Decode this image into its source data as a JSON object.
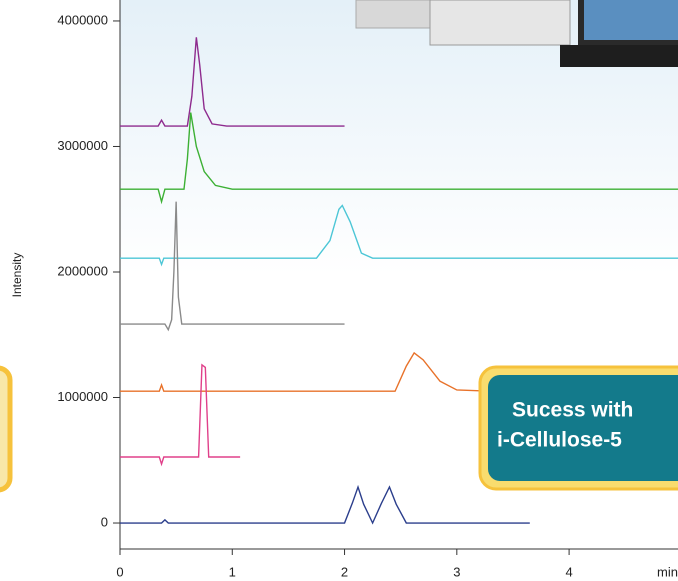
{
  "chart_data": {
    "type": "line",
    "x_label": "min",
    "y_label": "Intensity",
    "xlim": [
      0,
      4.97
    ],
    "xticks": [
      0,
      1,
      2,
      3,
      4
    ],
    "ylim": [
      -207000,
      4167000
    ],
    "yticks": [
      0,
      1000000,
      2000000,
      3000000,
      4000000
    ],
    "annotation": [
      "Sucess with",
      "i-Cellulose-5"
    ],
    "series": [
      {
        "color": "#8e2b8e",
        "x": [
          0,
          0.34,
          0.37,
          0.4,
          0.6,
          0.64,
          0.68,
          0.71,
          0.75,
          0.82,
          0.95,
          2.0
        ],
        "values": [
          3163000,
          3163000,
          3210000,
          3163000,
          3163000,
          3400000,
          3870000,
          3650000,
          3300000,
          3180000,
          3163000,
          3163000
        ]
      },
      {
        "color": "#3cb034",
        "x": [
          0,
          0.34,
          0.37,
          0.4,
          0.57,
          0.6,
          0.63,
          0.68,
          0.75,
          0.85,
          1.0,
          4.97
        ],
        "values": [
          2660000,
          2660000,
          2560000,
          2660000,
          2660000,
          2900000,
          3270000,
          3000000,
          2800000,
          2690000,
          2660000,
          2660000
        ]
      },
      {
        "color": "#4cc6d6",
        "x": [
          0,
          0.35,
          0.37,
          0.39,
          1.75,
          1.87,
          1.95,
          1.98,
          2.05,
          2.15,
          2.25,
          4.97
        ],
        "values": [
          2110000,
          2110000,
          2060000,
          2110000,
          2110000,
          2250000,
          2500000,
          2530000,
          2400000,
          2150000,
          2110000,
          2110000
        ]
      },
      {
        "color": "#8a8a8a",
        "x": [
          0,
          0.4,
          0.43,
          0.46,
          0.48,
          0.5,
          0.52,
          0.55,
          2.0
        ],
        "values": [
          1585000,
          1585000,
          1540000,
          1620000,
          2000000,
          2560000,
          1800000,
          1585000,
          1585000
        ]
      },
      {
        "color": "#e8722a",
        "x": [
          0,
          0.35,
          0.37,
          0.39,
          2.45,
          2.55,
          2.62,
          2.7,
          2.85,
          3.0,
          3.3
        ],
        "values": [
          1050000,
          1050000,
          1100000,
          1050000,
          1050000,
          1250000,
          1355000,
          1300000,
          1130000,
          1060000,
          1050000
        ]
      },
      {
        "color": "#e0408a",
        "x": [
          0,
          0.35,
          0.37,
          0.39,
          0.7,
          0.73,
          0.76,
          0.79,
          1.07
        ],
        "values": [
          526000,
          526000,
          470000,
          526000,
          526000,
          1260000,
          1240000,
          526000,
          526000
        ]
      },
      {
        "color": "#2b3e8c",
        "x": [
          0,
          0.37,
          0.4,
          0.43,
          2.0,
          2.07,
          2.12,
          2.17,
          2.25,
          2.33,
          2.4,
          2.46,
          2.55,
          3.65
        ],
        "values": [
          0,
          0,
          25000,
          0,
          0,
          160000,
          287000,
          150000,
          0,
          160000,
          287000,
          150000,
          0,
          0
        ]
      }
    ]
  }
}
